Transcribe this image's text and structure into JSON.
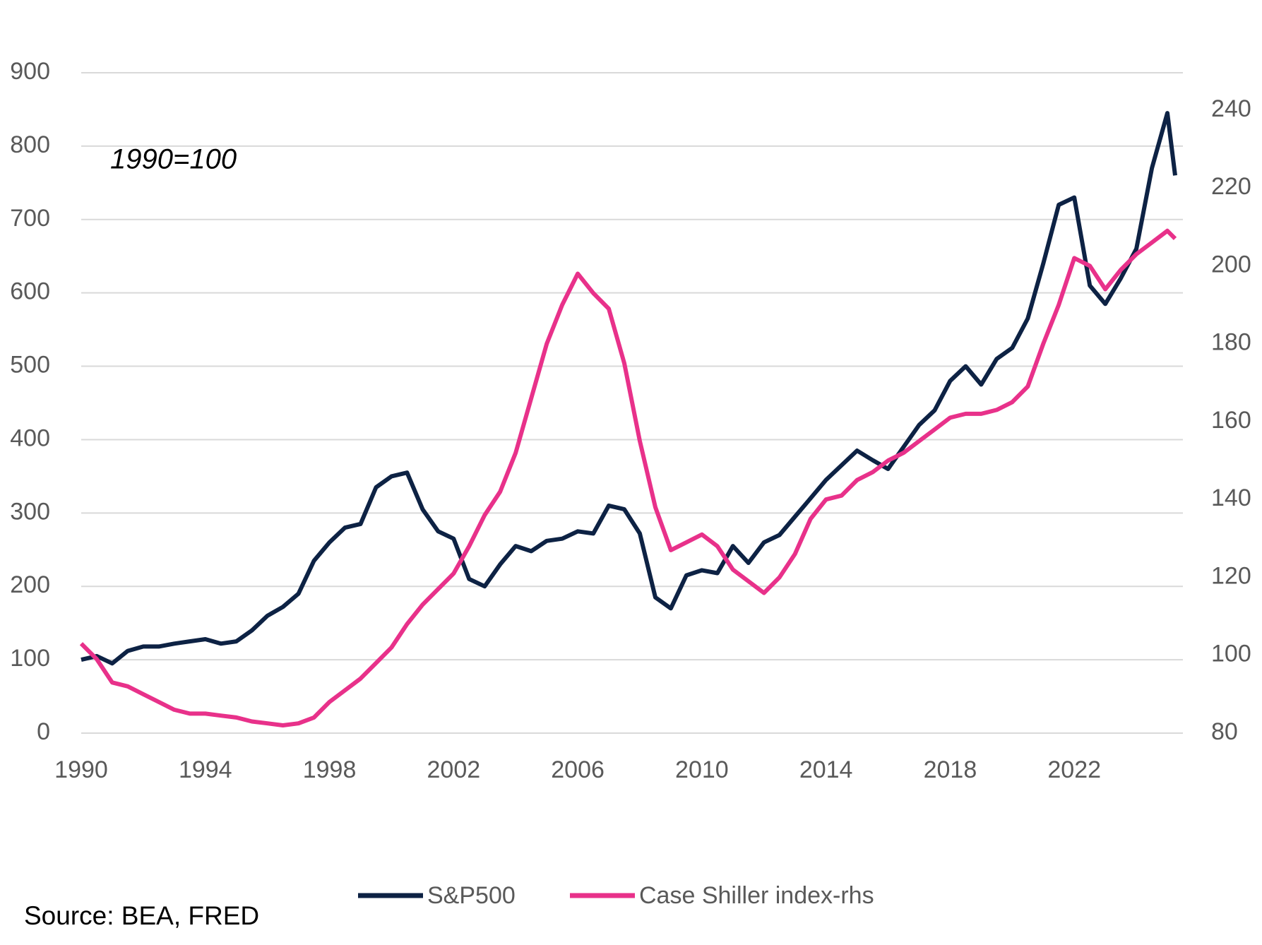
{
  "chart_data": {
    "type": "line",
    "annotation": "1990=100",
    "source": "Source: BEA, FRED",
    "x": [
      1990,
      1990.5,
      1991,
      1991.5,
      1992,
      1992.5,
      1993,
      1993.5,
      1994,
      1994.5,
      1995,
      1995.5,
      1996,
      1996.5,
      1997,
      1997.5,
      1998,
      1998.5,
      1999,
      1999.5,
      2000,
      2000.5,
      2001,
      2001.5,
      2002,
      2002.5,
      2003,
      2003.5,
      2004,
      2004.5,
      2005,
      2005.5,
      2006,
      2006.5,
      2007,
      2007.5,
      2008,
      2008.5,
      2009,
      2009.5,
      2010,
      2010.5,
      2011,
      2011.5,
      2012,
      2012.5,
      2013,
      2013.5,
      2014,
      2014.5,
      2015,
      2015.5,
      2016,
      2016.5,
      2017,
      2017.5,
      2018,
      2018.5,
      2019,
      2019.5,
      2020,
      2020.5,
      2021,
      2021.5,
      2022,
      2022.5,
      2023,
      2023.5,
      2024,
      2024.5,
      2025,
      2025.25
    ],
    "series": [
      {
        "name": "S&P500",
        "color": "#0d2244",
        "axis": "y",
        "values": [
          100,
          105,
          95,
          112,
          118,
          118,
          122,
          125,
          128,
          122,
          125,
          140,
          160,
          172,
          190,
          235,
          260,
          280,
          285,
          335,
          350,
          355,
          305,
          275,
          265,
          210,
          200,
          230,
          255,
          248,
          262,
          265,
          275,
          272,
          310,
          305,
          272,
          185,
          170,
          215,
          222,
          218,
          255,
          232,
          260,
          270,
          295,
          320,
          345,
          365,
          385,
          372,
          360,
          390,
          420,
          440,
          480,
          500,
          475,
          510,
          525,
          565,
          640,
          720,
          730,
          610,
          585,
          620,
          660,
          770,
          845,
          760
        ]
      },
      {
        "name": "Case Shiller index-rhs",
        "color": "#e8318a",
        "axis": "y2",
        "values": [
          103,
          99,
          93,
          92,
          90,
          88,
          86,
          85,
          85,
          84.5,
          84,
          83,
          82.5,
          82,
          82.5,
          84,
          88,
          91,
          94,
          98,
          102,
          108,
          113,
          117,
          121,
          128,
          136,
          142,
          152,
          166,
          180,
          190,
          198,
          193,
          189,
          175,
          155,
          138,
          127,
          129,
          131,
          128,
          122,
          119,
          116,
          120,
          126,
          135,
          140,
          141,
          145,
          147,
          150,
          152,
          155,
          158,
          161,
          162,
          162,
          163,
          165,
          169,
          180,
          190,
          202,
          200,
          194,
          199,
          203,
          206,
          209,
          207
        ]
      }
    ],
    "xlim": [
      1990,
      2025.5
    ],
    "xticks": [
      1990,
      1994,
      1998,
      2002,
      2006,
      2010,
      2014,
      2018,
      2022
    ],
    "ylim": [
      0,
      900
    ],
    "yticks": [
      0,
      100,
      200,
      300,
      400,
      500,
      600,
      700,
      800,
      900
    ],
    "y2lim": [
      80,
      249.6
    ],
    "y2ticks": [
      80,
      100,
      120,
      140,
      160,
      180,
      200,
      220,
      240
    ],
    "grid": true,
    "legend": "bottom"
  }
}
